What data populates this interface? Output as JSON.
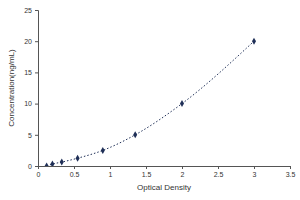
{
  "chart_data": {
    "type": "line",
    "x_label": "Optical Density",
    "y_label": "Concentration(ng/mL)",
    "x": [
      0.12,
      0.2,
      0.33,
      0.55,
      0.9,
      1.35,
      2.0,
      3.0
    ],
    "values": [
      0,
      0.31,
      0.625,
      1.25,
      2.5,
      5,
      10,
      20
    ],
    "color": "#1f2f57",
    "marker": "diamond",
    "line_style": "dotted",
    "xlim": [
      0,
      3.5
    ],
    "xticks": [
      0,
      0.5,
      1,
      1.5,
      2,
      2.5,
      3,
      3.5
    ],
    "ylim": [
      0,
      25
    ],
    "yticks": [
      0,
      5,
      10,
      15,
      20,
      25
    ],
    "grid": false
  }
}
